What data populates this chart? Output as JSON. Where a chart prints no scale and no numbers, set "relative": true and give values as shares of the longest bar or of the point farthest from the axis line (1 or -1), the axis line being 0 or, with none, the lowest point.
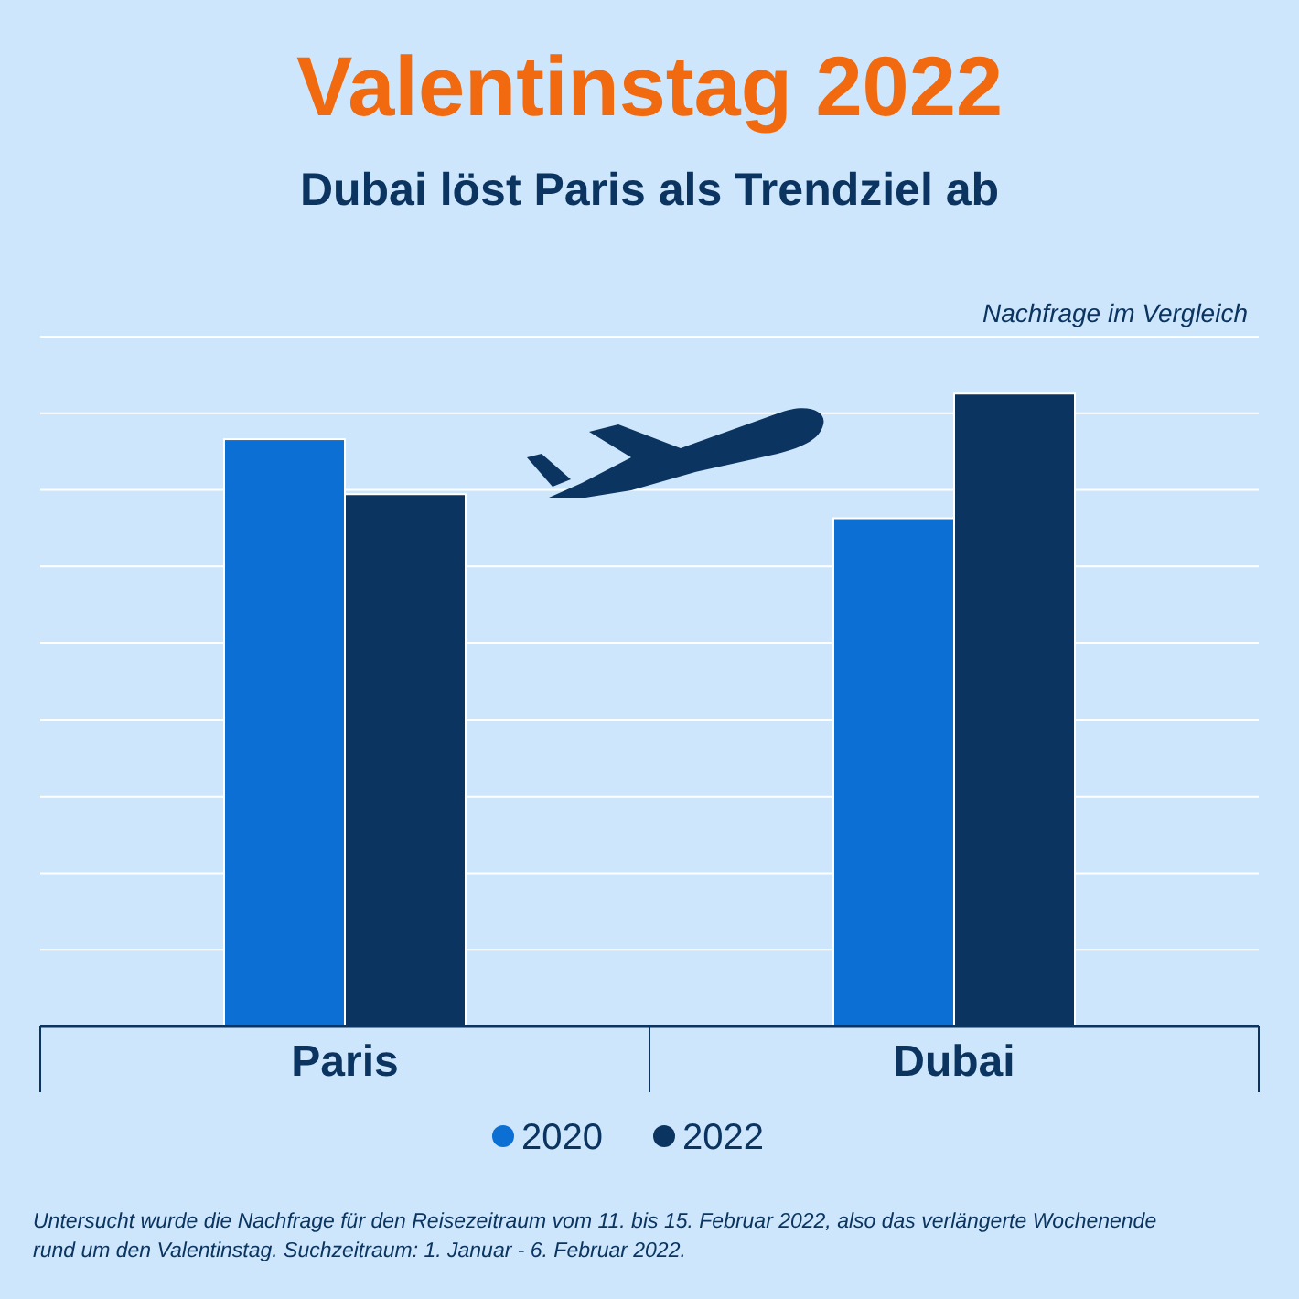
{
  "chart_data": {
    "type": "bar",
    "title": "Valentinstag 2022",
    "subtitle": "Dubai löst Paris als Trendziel ab",
    "relative": true,
    "grid": "y",
    "legend": "bottom",
    "categories": [
      "Paris",
      "Dubai"
    ],
    "series": [
      {
        "name": "2020",
        "color": "#0b6fd3",
        "values": [
          0.928,
          0.803
        ]
      },
      {
        "name": "2022",
        "color": "#0b3560",
        "values": [
          0.841,
          1
        ]
      }
    ],
    "annotations": [
      "Nachfrage im Vergleich",
      "Untersucht wurde die Nachfrage für den Reisezeitraum vom 11. bis 15. Februar 2022, also das verlängerte Wochenende rund um den Valentinstag. Suchzeitraum: 1. Januar - 6. Februar 2022."
    ]
  }
}
